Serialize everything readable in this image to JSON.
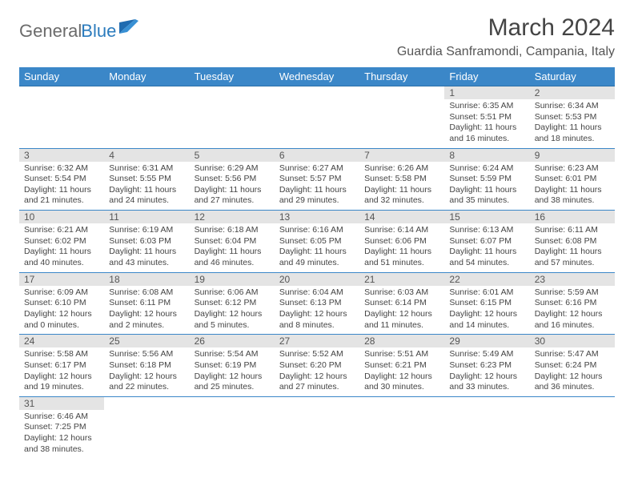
{
  "logo": {
    "text1": "General",
    "text2": "Blue"
  },
  "title": "March 2024",
  "location": "Guardia Sanframondi, Campania, Italy",
  "colors": {
    "header_bg": "#3b87c8",
    "header_text": "#ffffff",
    "daynum_bg": "#e4e4e4",
    "border": "#3b87c8",
    "text": "#444444",
    "logo_blue": "#2b7bbd"
  },
  "weekdays": [
    "Sunday",
    "Monday",
    "Tuesday",
    "Wednesday",
    "Thursday",
    "Friday",
    "Saturday"
  ],
  "weeks": [
    [
      {
        "n": "",
        "sr": "",
        "ss": "",
        "dl": ""
      },
      {
        "n": "",
        "sr": "",
        "ss": "",
        "dl": ""
      },
      {
        "n": "",
        "sr": "",
        "ss": "",
        "dl": ""
      },
      {
        "n": "",
        "sr": "",
        "ss": "",
        "dl": ""
      },
      {
        "n": "",
        "sr": "",
        "ss": "",
        "dl": ""
      },
      {
        "n": "1",
        "sr": "Sunrise: 6:35 AM",
        "ss": "Sunset: 5:51 PM",
        "dl": "Daylight: 11 hours and 16 minutes."
      },
      {
        "n": "2",
        "sr": "Sunrise: 6:34 AM",
        "ss": "Sunset: 5:53 PM",
        "dl": "Daylight: 11 hours and 18 minutes."
      }
    ],
    [
      {
        "n": "3",
        "sr": "Sunrise: 6:32 AM",
        "ss": "Sunset: 5:54 PM",
        "dl": "Daylight: 11 hours and 21 minutes."
      },
      {
        "n": "4",
        "sr": "Sunrise: 6:31 AM",
        "ss": "Sunset: 5:55 PM",
        "dl": "Daylight: 11 hours and 24 minutes."
      },
      {
        "n": "5",
        "sr": "Sunrise: 6:29 AM",
        "ss": "Sunset: 5:56 PM",
        "dl": "Daylight: 11 hours and 27 minutes."
      },
      {
        "n": "6",
        "sr": "Sunrise: 6:27 AM",
        "ss": "Sunset: 5:57 PM",
        "dl": "Daylight: 11 hours and 29 minutes."
      },
      {
        "n": "7",
        "sr": "Sunrise: 6:26 AM",
        "ss": "Sunset: 5:58 PM",
        "dl": "Daylight: 11 hours and 32 minutes."
      },
      {
        "n": "8",
        "sr": "Sunrise: 6:24 AM",
        "ss": "Sunset: 5:59 PM",
        "dl": "Daylight: 11 hours and 35 minutes."
      },
      {
        "n": "9",
        "sr": "Sunrise: 6:23 AM",
        "ss": "Sunset: 6:01 PM",
        "dl": "Daylight: 11 hours and 38 minutes."
      }
    ],
    [
      {
        "n": "10",
        "sr": "Sunrise: 6:21 AM",
        "ss": "Sunset: 6:02 PM",
        "dl": "Daylight: 11 hours and 40 minutes."
      },
      {
        "n": "11",
        "sr": "Sunrise: 6:19 AM",
        "ss": "Sunset: 6:03 PM",
        "dl": "Daylight: 11 hours and 43 minutes."
      },
      {
        "n": "12",
        "sr": "Sunrise: 6:18 AM",
        "ss": "Sunset: 6:04 PM",
        "dl": "Daylight: 11 hours and 46 minutes."
      },
      {
        "n": "13",
        "sr": "Sunrise: 6:16 AM",
        "ss": "Sunset: 6:05 PM",
        "dl": "Daylight: 11 hours and 49 minutes."
      },
      {
        "n": "14",
        "sr": "Sunrise: 6:14 AM",
        "ss": "Sunset: 6:06 PM",
        "dl": "Daylight: 11 hours and 51 minutes."
      },
      {
        "n": "15",
        "sr": "Sunrise: 6:13 AM",
        "ss": "Sunset: 6:07 PM",
        "dl": "Daylight: 11 hours and 54 minutes."
      },
      {
        "n": "16",
        "sr": "Sunrise: 6:11 AM",
        "ss": "Sunset: 6:08 PM",
        "dl": "Daylight: 11 hours and 57 minutes."
      }
    ],
    [
      {
        "n": "17",
        "sr": "Sunrise: 6:09 AM",
        "ss": "Sunset: 6:10 PM",
        "dl": "Daylight: 12 hours and 0 minutes."
      },
      {
        "n": "18",
        "sr": "Sunrise: 6:08 AM",
        "ss": "Sunset: 6:11 PM",
        "dl": "Daylight: 12 hours and 2 minutes."
      },
      {
        "n": "19",
        "sr": "Sunrise: 6:06 AM",
        "ss": "Sunset: 6:12 PM",
        "dl": "Daylight: 12 hours and 5 minutes."
      },
      {
        "n": "20",
        "sr": "Sunrise: 6:04 AM",
        "ss": "Sunset: 6:13 PM",
        "dl": "Daylight: 12 hours and 8 minutes."
      },
      {
        "n": "21",
        "sr": "Sunrise: 6:03 AM",
        "ss": "Sunset: 6:14 PM",
        "dl": "Daylight: 12 hours and 11 minutes."
      },
      {
        "n": "22",
        "sr": "Sunrise: 6:01 AM",
        "ss": "Sunset: 6:15 PM",
        "dl": "Daylight: 12 hours and 14 minutes."
      },
      {
        "n": "23",
        "sr": "Sunrise: 5:59 AM",
        "ss": "Sunset: 6:16 PM",
        "dl": "Daylight: 12 hours and 16 minutes."
      }
    ],
    [
      {
        "n": "24",
        "sr": "Sunrise: 5:58 AM",
        "ss": "Sunset: 6:17 PM",
        "dl": "Daylight: 12 hours and 19 minutes."
      },
      {
        "n": "25",
        "sr": "Sunrise: 5:56 AM",
        "ss": "Sunset: 6:18 PM",
        "dl": "Daylight: 12 hours and 22 minutes."
      },
      {
        "n": "26",
        "sr": "Sunrise: 5:54 AM",
        "ss": "Sunset: 6:19 PM",
        "dl": "Daylight: 12 hours and 25 minutes."
      },
      {
        "n": "27",
        "sr": "Sunrise: 5:52 AM",
        "ss": "Sunset: 6:20 PM",
        "dl": "Daylight: 12 hours and 27 minutes."
      },
      {
        "n": "28",
        "sr": "Sunrise: 5:51 AM",
        "ss": "Sunset: 6:21 PM",
        "dl": "Daylight: 12 hours and 30 minutes."
      },
      {
        "n": "29",
        "sr": "Sunrise: 5:49 AM",
        "ss": "Sunset: 6:23 PM",
        "dl": "Daylight: 12 hours and 33 minutes."
      },
      {
        "n": "30",
        "sr": "Sunrise: 5:47 AM",
        "ss": "Sunset: 6:24 PM",
        "dl": "Daylight: 12 hours and 36 minutes."
      }
    ],
    [
      {
        "n": "31",
        "sr": "Sunrise: 6:46 AM",
        "ss": "Sunset: 7:25 PM",
        "dl": "Daylight: 12 hours and 38 minutes."
      },
      {
        "n": "",
        "sr": "",
        "ss": "",
        "dl": ""
      },
      {
        "n": "",
        "sr": "",
        "ss": "",
        "dl": ""
      },
      {
        "n": "",
        "sr": "",
        "ss": "",
        "dl": ""
      },
      {
        "n": "",
        "sr": "",
        "ss": "",
        "dl": ""
      },
      {
        "n": "",
        "sr": "",
        "ss": "",
        "dl": ""
      },
      {
        "n": "",
        "sr": "",
        "ss": "",
        "dl": ""
      }
    ]
  ]
}
